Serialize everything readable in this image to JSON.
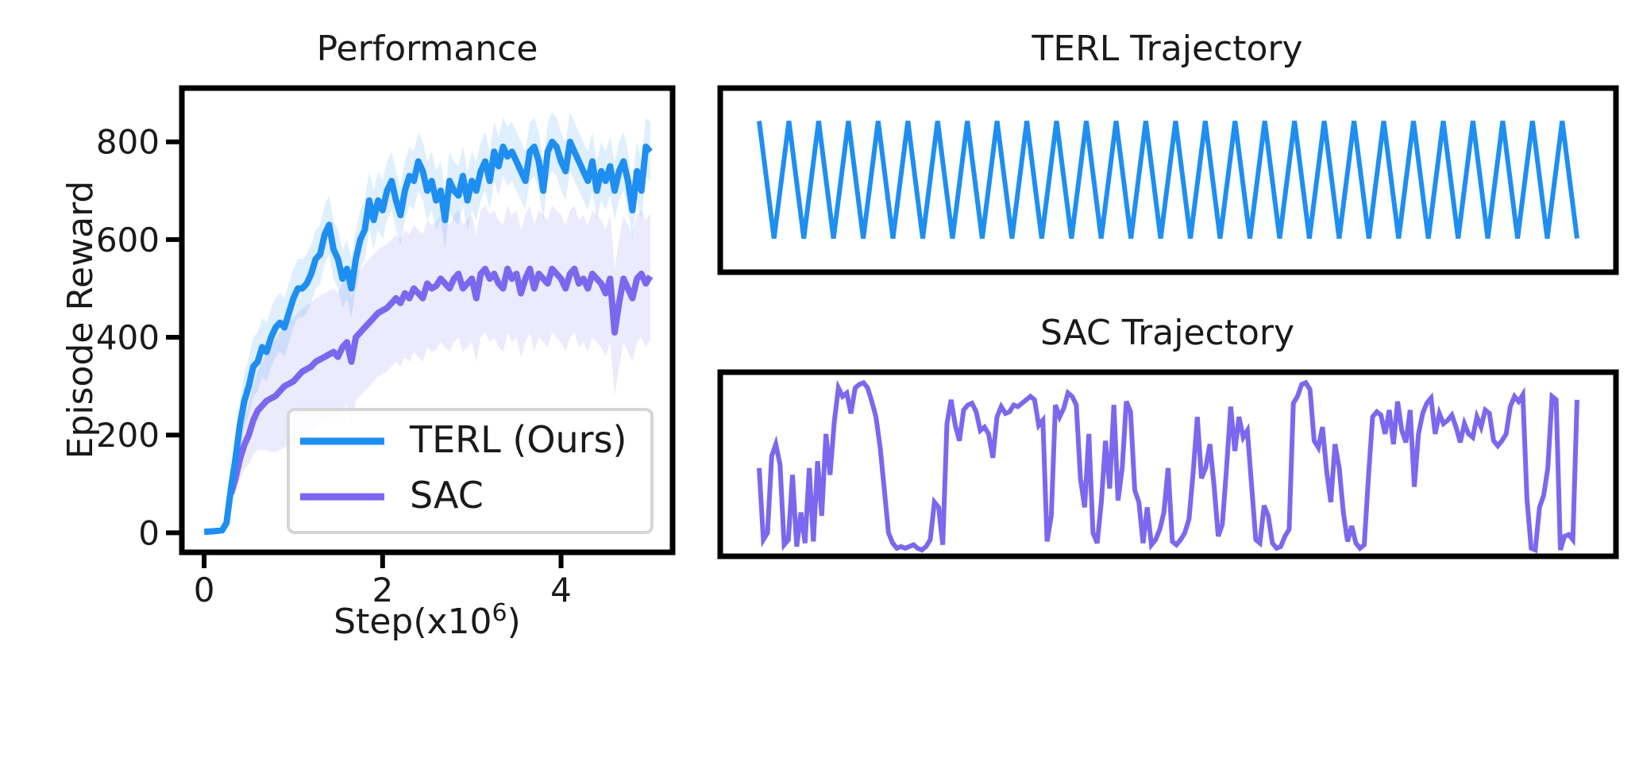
{
  "chart_data": [
    {
      "type": "line",
      "title": "Performance",
      "xlabel": "Step(x10",
      "xlabel_sup": "6",
      "xlabel_suffix": ")",
      "ylabel": "Episode Reward",
      "xlim": [
        -0.25,
        5.25
      ],
      "ylim": [
        -40,
        910
      ],
      "xticks": [
        0,
        2,
        4
      ],
      "yticks": [
        0,
        200,
        400,
        600,
        800
      ],
      "legend": {
        "placement": "lower-right",
        "entries": [
          "TERL (Ours)",
          "SAC"
        ]
      },
      "series": [
        {
          "name": "TERL (Ours)",
          "color": "#1f8ef1",
          "band_color": "#1f8ef1",
          "x": [
            0.0,
            0.1,
            0.2,
            0.25,
            0.3,
            0.35,
            0.4,
            0.45,
            0.5,
            0.55,
            0.6,
            0.65,
            0.7,
            0.75,
            0.8,
            0.85,
            0.9,
            0.95,
            1.0,
            1.05,
            1.1,
            1.15,
            1.2,
            1.25,
            1.3,
            1.35,
            1.4,
            1.45,
            1.5,
            1.55,
            1.6,
            1.65,
            1.7,
            1.75,
            1.8,
            1.85,
            1.9,
            1.95,
            2.0,
            2.05,
            2.1,
            2.15,
            2.2,
            2.25,
            2.3,
            2.35,
            2.4,
            2.45,
            2.5,
            2.55,
            2.6,
            2.65,
            2.7,
            2.75,
            2.8,
            2.85,
            2.9,
            2.95,
            3.0,
            3.05,
            3.1,
            3.15,
            3.2,
            3.25,
            3.3,
            3.35,
            3.4,
            3.45,
            3.5,
            3.55,
            3.6,
            3.65,
            3.7,
            3.75,
            3.8,
            3.85,
            3.9,
            3.95,
            4.0,
            4.05,
            4.1,
            4.15,
            4.2,
            4.25,
            4.3,
            4.35,
            4.4,
            4.45,
            4.5,
            4.55,
            4.6,
            4.65,
            4.7,
            4.75,
            4.8,
            4.85,
            4.9,
            4.95,
            5.0
          ],
          "y": [
            2,
            3,
            5,
            20,
            90,
            150,
            220,
            270,
            300,
            340,
            350,
            380,
            370,
            400,
            420,
            430,
            420,
            450,
            480,
            500,
            500,
            510,
            530,
            560,
            570,
            610,
            630,
            580,
            560,
            520,
            540,
            500,
            560,
            600,
            620,
            680,
            640,
            680,
            660,
            700,
            720,
            680,
            650,
            700,
            730,
            720,
            760,
            740,
            700,
            720,
            680,
            700,
            640,
            720,
            700,
            690,
            730,
            680,
            720,
            700,
            740,
            760,
            720,
            780,
            750,
            790,
            770,
            780,
            760,
            740,
            720,
            780,
            790,
            760,
            700,
            780,
            800,
            790,
            760,
            740,
            800,
            780,
            760,
            740,
            720,
            760,
            700,
            740,
            720,
            750,
            700,
            740,
            760,
            720,
            660,
            740,
            700,
            790,
            780
          ],
          "band_halfwidth": [
            2,
            2,
            3,
            10,
            30,
            40,
            50,
            55,
            60,
            60,
            60,
            60,
            60,
            60,
            60,
            60,
            60,
            60,
            60,
            60,
            60,
            60,
            60,
            60,
            60,
            60,
            60,
            60,
            60,
            60,
            60,
            60,
            60,
            60,
            60,
            60,
            60,
            60,
            60,
            60,
            60,
            60,
            60,
            60,
            60,
            60,
            60,
            60,
            60,
            60,
            60,
            60,
            60,
            60,
            60,
            60,
            60,
            60,
            60,
            60,
            60,
            60,
            60,
            60,
            60,
            60,
            60,
            60,
            60,
            60,
            60,
            60,
            60,
            60,
            60,
            60,
            60,
            60,
            60,
            60,
            60,
            60,
            60,
            60,
            60,
            60,
            60,
            60,
            60,
            60,
            60,
            60,
            60,
            60,
            60,
            60,
            60,
            60,
            60
          ]
        },
        {
          "name": "SAC",
          "color": "#7b68ee",
          "band_color": "#7b68ee",
          "x": [
            0.3,
            0.35,
            0.4,
            0.45,
            0.5,
            0.55,
            0.6,
            0.65,
            0.7,
            0.75,
            0.8,
            0.85,
            0.9,
            0.95,
            1.0,
            1.05,
            1.1,
            1.15,
            1.2,
            1.25,
            1.3,
            1.35,
            1.4,
            1.45,
            1.5,
            1.55,
            1.6,
            1.65,
            1.7,
            1.75,
            1.8,
            1.85,
            1.9,
            1.95,
            2.0,
            2.05,
            2.1,
            2.15,
            2.2,
            2.25,
            2.3,
            2.35,
            2.4,
            2.45,
            2.5,
            2.55,
            2.6,
            2.65,
            2.7,
            2.75,
            2.8,
            2.85,
            2.9,
            2.95,
            3.0,
            3.05,
            3.1,
            3.15,
            3.2,
            3.25,
            3.3,
            3.35,
            3.4,
            3.45,
            3.5,
            3.55,
            3.6,
            3.65,
            3.7,
            3.75,
            3.8,
            3.85,
            3.9,
            3.95,
            4.0,
            4.05,
            4.1,
            4.15,
            4.2,
            4.25,
            4.3,
            4.35,
            4.4,
            4.45,
            4.5,
            4.55,
            4.6,
            4.65,
            4.7,
            4.75,
            4.8,
            4.85,
            4.9,
            4.95,
            5.0
          ],
          "y": [
            80,
            110,
            150,
            180,
            200,
            230,
            250,
            260,
            270,
            275,
            280,
            290,
            300,
            305,
            310,
            320,
            330,
            335,
            340,
            350,
            355,
            360,
            365,
            370,
            360,
            380,
            390,
            350,
            400,
            410,
            420,
            430,
            440,
            450,
            455,
            460,
            470,
            480,
            470,
            490,
            480,
            500,
            490,
            480,
            510,
            500,
            505,
            520,
            510,
            500,
            520,
            530,
            500,
            510,
            520,
            480,
            530,
            540,
            520,
            530,
            510,
            500,
            540,
            520,
            530,
            490,
            520,
            540,
            500,
            530,
            520,
            510,
            540,
            530,
            520,
            500,
            530,
            540,
            510,
            520,
            500,
            530,
            520,
            510,
            490,
            520,
            410,
            470,
            520,
            500,
            480,
            520,
            530,
            510,
            525
          ],
          "band_halfwidth": [
            20,
            30,
            40,
            50,
            60,
            70,
            80,
            90,
            100,
            110,
            115,
            120,
            125,
            130,
            130,
            130,
            130,
            130,
            130,
            130,
            130,
            130,
            130,
            130,
            130,
            130,
            130,
            130,
            130,
            130,
            130,
            130,
            130,
            130,
            130,
            130,
            130,
            130,
            130,
            130,
            130,
            130,
            130,
            130,
            130,
            130,
            130,
            130,
            130,
            130,
            130,
            130,
            130,
            130,
            130,
            130,
            130,
            130,
            130,
            130,
            130,
            130,
            130,
            130,
            130,
            130,
            130,
            130,
            130,
            130,
            130,
            130,
            130,
            130,
            130,
            130,
            130,
            130,
            130,
            130,
            130,
            130,
            130,
            130,
            130,
            130,
            130,
            130,
            130,
            130,
            130,
            130,
            130,
            130,
            130
          ]
        }
      ]
    },
    {
      "type": "line",
      "title": "TERL Trajectory",
      "axes": "off",
      "ylim": [
        0,
        1
      ],
      "series": [
        {
          "color": "#1f8ef1",
          "y": [
            0.9,
            0.1,
            0.9,
            0.1,
            0.9,
            0.1,
            0.9,
            0.1,
            0.9,
            0.1,
            0.9,
            0.1,
            0.9,
            0.1,
            0.9,
            0.1,
            0.9,
            0.1,
            0.9,
            0.1,
            0.9,
            0.1,
            0.9,
            0.1,
            0.9,
            0.1,
            0.9,
            0.1,
            0.9,
            0.1,
            0.9,
            0.1,
            0.9,
            0.1,
            0.9,
            0.1,
            0.9,
            0.1,
            0.9,
            0.1,
            0.9,
            0.1,
            0.9,
            0.1,
            0.9,
            0.1,
            0.9,
            0.1,
            0.9,
            0.1,
            0.9,
            0.1,
            0.9,
            0.1,
            0.9,
            0.1
          ]
        }
      ]
    },
    {
      "type": "line",
      "title": "SAC Trajectory",
      "axes": "off",
      "ylim": [
        0,
        1
      ],
      "series": [
        {
          "color": "#7b68ee",
          "y": [
            0.48,
            0.06,
            0.1,
            0.55,
            0.62,
            0.5,
            0.03,
            0.06,
            0.44,
            0.02,
            0.22,
            0.04,
            0.48,
            0.05,
            0.52,
            0.2,
            0.68,
            0.44,
            0.75,
            0.95,
            0.9,
            0.92,
            0.8,
            0.95,
            0.97,
            0.98,
            0.95,
            0.87,
            0.78,
            0.6,
            0.35,
            0.1,
            0.04,
            0.01,
            0.02,
            0.01,
            0.02,
            0.03,
            0.01,
            0.0,
            0.02,
            0.06,
            0.28,
            0.25,
            0.03,
            0.74,
            0.88,
            0.73,
            0.64,
            0.82,
            0.85,
            0.86,
            0.81,
            0.7,
            0.72,
            0.68,
            0.54,
            0.78,
            0.84,
            0.8,
            0.81,
            0.85,
            0.84,
            0.86,
            0.88,
            0.9,
            0.88,
            0.73,
            0.76,
            0.05,
            0.2,
            0.85,
            0.78,
            0.83,
            0.92,
            0.9,
            0.85,
            0.42,
            0.25,
            0.68,
            0.1,
            0.04,
            0.28,
            0.64,
            0.36,
            0.85,
            0.29,
            0.48,
            0.87,
            0.81,
            0.35,
            0.28,
            0.04,
            0.25,
            0.03,
            0.06,
            0.12,
            0.22,
            0.48,
            0.05,
            0.03,
            0.06,
            0.1,
            0.18,
            0.45,
            0.78,
            0.42,
            0.48,
            0.62,
            0.38,
            0.08,
            0.15,
            0.48,
            0.84,
            0.58,
            0.78,
            0.66,
            0.7,
            0.38,
            0.06,
            0.04,
            0.26,
            0.2,
            0.04,
            0.01,
            0.02,
            0.08,
            0.12,
            0.86,
            0.9,
            0.97,
            0.98,
            0.94,
            0.64,
            0.6,
            0.72,
            0.46,
            0.28,
            0.62,
            0.48,
            0.22,
            0.05,
            0.14,
            0.04,
            0.01,
            0.03,
            0.42,
            0.78,
            0.81,
            0.79,
            0.68,
            0.82,
            0.62,
            0.87,
            0.7,
            0.63,
            0.82,
            0.37,
            0.68,
            0.8,
            0.86,
            0.89,
            0.68,
            0.8,
            0.74,
            0.76,
            0.79,
            0.72,
            0.63,
            0.74,
            0.68,
            0.66,
            0.78,
            0.72,
            0.82,
            0.8,
            0.64,
            0.61,
            0.64,
            0.68,
            0.84,
            0.9,
            0.87,
            0.91,
            0.3,
            0.01,
            0.0,
            0.25,
            0.32,
            0.48,
            0.9,
            0.88,
            0.0,
            0.08,
            0.09,
            0.06,
            0.88
          ]
        }
      ]
    }
  ]
}
